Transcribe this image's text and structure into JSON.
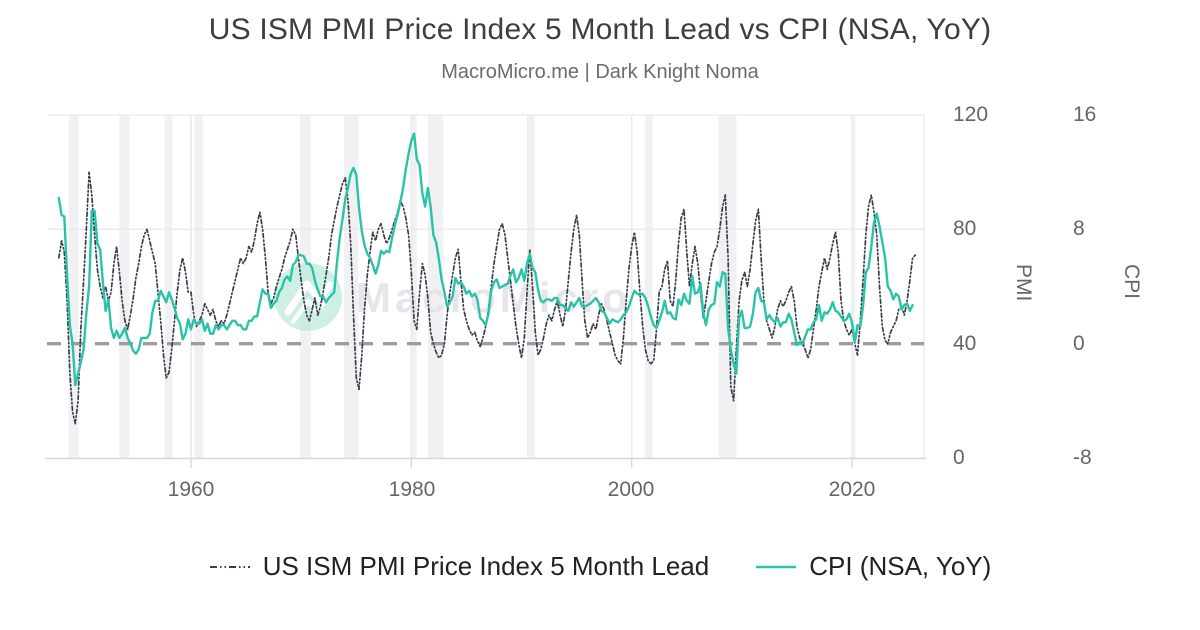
{
  "header": {
    "title": "US ISM PMI Price Index 5 Month Lead vs CPI (NSA, YoY)",
    "subtitle": "MacroMicro.me | Dark Knight Noma"
  },
  "watermark": {
    "text": "MacroMicro"
  },
  "chart_data": {
    "type": "line",
    "title": "US ISM PMI Price Index 5 Month Lead vs CPI (NSA, YoY)",
    "subtitle": "MacroMicro.me | Dark Knight Noma",
    "grid": "on",
    "legend_position": "bottom-center",
    "x_axis": {
      "ticks": [
        1960,
        1980,
        2000,
        2020
      ],
      "range": [
        1947.2,
        2026.3
      ]
    },
    "axes": {
      "pmi": {
        "title": "PMI",
        "ticks": [
          120,
          80,
          40,
          0
        ],
        "range": [
          0,
          120
        ],
        "side": "right-inner"
      },
      "cpi": {
        "title": "CPI",
        "ticks": [
          16,
          8,
          0,
          -8
        ],
        "range": [
          -8,
          16
        ],
        "side": "right-outer"
      }
    },
    "baseline": {
      "pmi": 40,
      "cpi": 0,
      "style": "dashed"
    },
    "recessions": [
      [
        1948.9,
        1949.8
      ],
      [
        1953.5,
        1954.4
      ],
      [
        1957.6,
        1958.3
      ],
      [
        1960.3,
        1961.1
      ],
      [
        1969.9,
        1970.9
      ],
      [
        1973.9,
        1975.2
      ],
      [
        1980.0,
        1980.5
      ],
      [
        1981.5,
        1982.9
      ],
      [
        1990.5,
        1991.2
      ],
      [
        2001.2,
        2001.9
      ],
      [
        2007.9,
        2009.5
      ],
      [
        2020.1,
        2020.3
      ]
    ],
    "colors": {
      "pmi_line": "#3a3f4a",
      "cpi_line": "#2ac3a9",
      "baseline": "#9c9ca1",
      "grid": "#e9e9ec",
      "axis_line": "#d6d6db",
      "recession_band": "#f1f1f4",
      "watermark_circle": "#bdeade",
      "watermark_text": "#e6e6ea"
    },
    "series": [
      {
        "name": "US ISM PMI Price Index 5 Month Lead",
        "axis": "pmi",
        "color": "#3a3f4a",
        "style": "dashdot",
        "dash": "4 2.5 1.3 2.5 1.3 2.5",
        "width": 1.7,
        "x_start": 1948.0,
        "x_step": 0.25,
        "values": [
          70,
          76,
          72,
          55,
          30,
          16,
          12,
          20,
          45,
          62,
          80,
          100,
          92,
          78,
          66,
          60,
          56,
          60,
          55,
          58,
          68,
          74,
          65,
          55,
          48,
          45,
          50,
          56,
          63,
          68,
          74,
          78,
          80,
          76,
          72,
          68,
          58,
          48,
          36,
          28,
          30,
          38,
          48,
          58,
          66,
          70,
          65,
          58,
          58,
          50,
          46,
          48,
          50,
          54,
          52,
          50,
          52,
          48,
          46,
          48,
          47,
          50,
          54,
          58,
          62,
          66,
          70,
          68,
          70,
          74,
          72,
          76,
          82,
          86,
          80,
          70,
          58,
          54,
          56,
          60,
          63,
          66,
          70,
          73,
          76,
          80,
          78,
          70,
          62,
          55,
          50,
          48,
          52,
          56,
          50,
          53,
          58,
          64,
          70,
          78,
          83,
          88,
          92,
          96,
          98,
          90,
          75,
          50,
          28,
          24,
          36,
          52,
          64,
          72,
          79,
          76,
          80,
          82,
          78,
          75,
          77,
          80,
          83,
          86,
          90,
          88,
          84,
          78,
          65,
          48,
          45,
          58,
          68,
          64,
          56,
          44,
          40,
          37,
          35,
          36,
          40,
          50,
          58,
          64,
          70,
          73,
          62,
          52,
          48,
          45,
          43,
          44,
          41,
          39,
          42,
          46,
          52,
          60,
          68,
          74,
          80,
          82,
          78,
          70,
          62,
          54,
          46,
          40,
          35,
          42,
          58,
          73,
          60,
          44,
          36,
          38,
          42,
          47,
          50,
          48,
          52,
          55,
          50,
          46,
          52,
          62,
          72,
          80,
          85,
          78,
          62,
          48,
          42,
          44,
          47,
          45,
          50,
          54,
          52,
          48,
          44,
          40,
          36,
          34,
          33,
          42,
          55,
          66,
          74,
          79,
          72,
          58,
          46,
          38,
          34,
          33,
          34,
          45,
          58,
          60,
          66,
          69,
          55,
          53,
          62,
          75,
          84,
          87,
          72,
          60,
          68,
          74,
          68,
          58,
          49,
          55,
          62,
          68,
          72,
          74,
          80,
          88,
          92,
          70,
          25,
          20,
          38,
          55,
          62,
          65,
          60,
          66,
          75,
          83,
          87,
          70,
          55,
          48,
          45,
          42,
          46,
          52,
          55,
          53,
          55,
          58,
          60,
          55,
          46,
          42,
          40,
          38,
          35,
          38,
          45,
          52,
          60,
          65,
          70,
          66,
          70,
          75,
          79,
          72,
          55,
          48,
          45,
          43,
          45,
          40,
          36,
          48,
          62,
          78,
          88,
          92,
          86,
          78,
          60,
          46,
          41,
          40,
          44,
          46,
          48,
          52,
          53,
          50,
          55,
          62,
          70,
          71
        ]
      },
      {
        "name": "CPI (NSA, YoY)",
        "axis": "cpi",
        "color": "#2ac3a9",
        "style": "solid",
        "dash": null,
        "width": 2.4,
        "x_start": 1948.0,
        "x_step": 0.25,
        "values": [
          10.2,
          9.0,
          8.9,
          4.8,
          1.3,
          0.0,
          -2.9,
          -2.1,
          -1.3,
          -0.4,
          2.1,
          4.0,
          9.3,
          9.3,
          7.0,
          6.6,
          4.3,
          2.3,
          3.1,
          1.1,
          0.4,
          0.9,
          0.4,
          0.7,
          1.1,
          0.4,
          0.0,
          -0.5,
          -0.7,
          -0.4,
          0.4,
          0.4,
          0.4,
          0.7,
          2.2,
          3.0,
          3.0,
          3.7,
          3.3,
          2.9,
          3.6,
          3.1,
          2.5,
          1.8,
          1.4,
          0.3,
          0.7,
          1.7,
          1.0,
          1.7,
          1.4,
          1.4,
          1.7,
          0.9,
          1.4,
          0.7,
          0.7,
          1.3,
          1.0,
          1.3,
          1.3,
          1.0,
          1.3,
          1.6,
          1.6,
          1.3,
          1.3,
          1.0,
          1.0,
          1.6,
          1.6,
          1.9,
          1.9,
          2.9,
          3.8,
          3.5,
          3.5,
          2.5,
          2.8,
          3.0,
          3.6,
          3.9,
          4.5,
          4.7,
          4.4,
          5.5,
          5.7,
          6.2,
          6.2,
          6.1,
          5.6,
          5.6,
          5.3,
          4.4,
          3.8,
          3.3,
          3.3,
          2.9,
          3.2,
          3.4,
          3.6,
          5.7,
          7.4,
          8.7,
          10.1,
          10.9,
          11.9,
          12.3,
          11.8,
          9.5,
          7.9,
          6.9,
          6.3,
          6.0,
          5.5,
          4.9,
          5.5,
          6.5,
          6.3,
          6.5,
          6.4,
          7.4,
          8.3,
          9.0,
          9.9,
          10.9,
          12.2,
          13.3,
          14.2,
          14.7,
          12.9,
          12.5,
          10.5,
          9.6,
          10.9,
          9.6,
          7.6,
          7.1,
          5.9,
          4.5,
          3.6,
          2.6,
          2.9,
          3.3,
          4.6,
          4.2,
          4.3,
          4.0,
          3.5,
          3.7,
          3.3,
          3.5,
          3.1,
          1.8,
          1.6,
          1.3,
          2.1,
          3.7,
          4.3,
          4.5,
          3.9,
          4.0,
          4.1,
          4.2,
          4.8,
          5.2,
          4.3,
          4.6,
          5.2,
          4.4,
          5.6,
          6.3,
          5.3,
          5.0,
          3.8,
          3.0,
          2.9,
          3.1,
          3.1,
          3.0,
          3.2,
          3.2,
          2.7,
          2.7,
          2.5,
          2.3,
          2.9,
          2.6,
          2.9,
          3.2,
          2.6,
          2.6,
          2.7,
          2.8,
          3.0,
          3.2,
          2.9,
          2.3,
          2.2,
          1.8,
          1.4,
          1.7,
          1.6,
          1.5,
          1.7,
          2.0,
          2.2,
          2.6,
          3.2,
          3.7,
          3.5,
          3.4,
          3.5,
          3.2,
          2.6,
          1.9,
          1.3,
          1.1,
          1.6,
          2.2,
          3.0,
          2.1,
          2.2,
          1.8,
          1.7,
          3.1,
          2.7,
          3.5,
          3.0,
          2.8,
          4.7,
          3.5,
          3.6,
          4.2,
          2.1,
          1.3,
          2.4,
          2.7,
          2.8,
          4.3,
          4.0,
          5.0,
          4.9,
          1.1,
          -0.4,
          -1.4,
          -2.1,
          1.8,
          2.3,
          1.1,
          1.1,
          1.2,
          2.1,
          3.6,
          3.9,
          3.0,
          2.9,
          1.7,
          2.0,
          1.7,
          1.5,
          1.8,
          1.2,
          1.5,
          1.5,
          2.1,
          1.7,
          0.8,
          -0.1,
          0.1,
          0.0,
          0.5,
          1.0,
          1.0,
          1.5,
          1.7,
          2.7,
          1.6,
          2.2,
          2.1,
          2.4,
          2.9,
          2.3,
          2.2,
          1.9,
          1.6,
          1.7,
          2.1,
          1.5,
          0.1,
          1.3,
          1.2,
          2.6,
          5.0,
          5.3,
          6.8,
          8.5,
          9.1,
          8.2,
          7.1,
          6.0,
          4.0,
          3.7,
          3.1,
          3.5,
          3.3,
          2.4,
          2.7,
          2.8,
          2.3,
          2.7
        ]
      }
    ]
  }
}
